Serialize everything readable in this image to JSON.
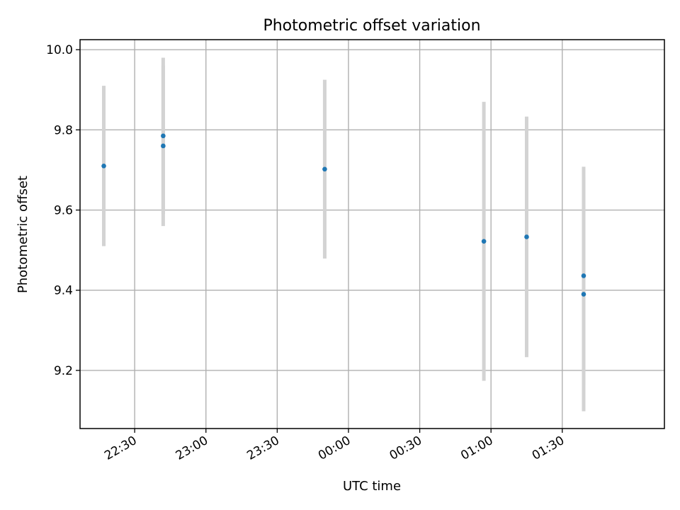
{
  "chart_data": {
    "type": "scatter",
    "title": "Photometric offset variation",
    "xlabel": "UTC time",
    "ylabel": "Photometric offset",
    "x_axis_type": "time",
    "xlim": [
      "22:07",
      "02:13"
    ],
    "ylim": [
      9.055,
      10.025
    ],
    "x_ticks": [
      "22:30",
      "23:00",
      "23:30",
      "00:00",
      "00:30",
      "01:00",
      "01:30"
    ],
    "y_ticks": [
      9.2,
      9.4,
      9.6,
      9.8,
      10.0
    ],
    "y_tick_labels": [
      "9.2",
      "9.4",
      "9.6",
      "9.8",
      "10.0"
    ],
    "grid": true,
    "colors": {
      "point": "#1f77b4",
      "errorbar": "#d3d3d3",
      "grid": "#b0b0b0"
    },
    "points": [
      {
        "time": "22:17",
        "y": 9.71,
        "err": 0.2
      },
      {
        "time": "22:42",
        "y": 9.785,
        "err": 0.195
      },
      {
        "time": "22:42",
        "y": 9.76,
        "err": 0.2
      },
      {
        "time": "23:50",
        "y": 9.702,
        "err": 0.223
      },
      {
        "time": "00:57",
        "y": 9.522,
        "err": 0.348
      },
      {
        "time": "01:15",
        "y": 9.533,
        "err": 0.3
      },
      {
        "time": "01:39",
        "y": 9.436,
        "err": 0.272
      },
      {
        "time": "01:39",
        "y": 9.39,
        "err": 0.292
      }
    ]
  }
}
